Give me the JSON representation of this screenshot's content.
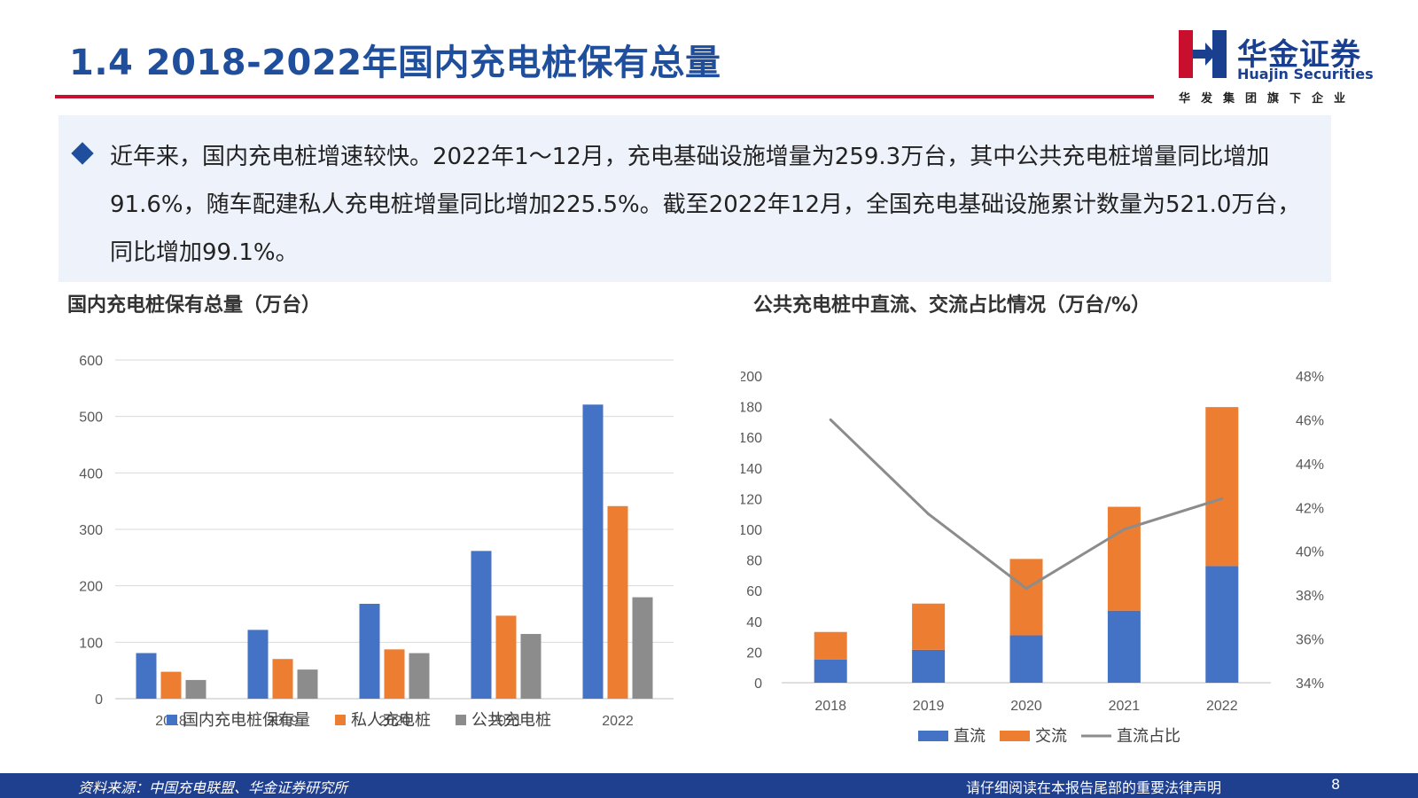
{
  "header": {
    "title": "1.4 2018-2022年国内充电桩保有总量",
    "logo_cn": "华金证券",
    "logo_en": "Huajin Securities",
    "logo_sub": "华发集团旗下企业",
    "colors": {
      "title": "#1f4e9c",
      "rule": "#c8102e",
      "logo_red": "#c8102e",
      "logo_blue": "#1a3f8f"
    }
  },
  "summary": {
    "text": "近年来，国内充电桩增速较快。2022年1～12月，充电基础设施增量为259.3万台，其中公共充电桩增量同比增加91.6%，随车配建私人充电桩增量同比增加225.5%。截至2022年12月，全国充电基础设施累计数量为521.0万台，同比增加99.1%。"
  },
  "footer": {
    "source": "资料来源：中国充电联盟、华金证券研究所",
    "disclaimer": "请仔细阅读在本报告尾部的重要法律声明",
    "page": "8"
  },
  "chart_data": [
    {
      "type": "bar",
      "title": "国内充电桩保有总量（万台）",
      "categories": [
        "2018",
        "2019",
        "2020",
        "2021",
        "2022"
      ],
      "ylim": [
        0,
        600
      ],
      "yticks": [
        "0",
        "100",
        "200",
        "300",
        "400",
        "500",
        "600"
      ],
      "grid": true,
      "legend_position": "bottom",
      "series": [
        {
          "name": "国内充电桩保有量",
          "color": "#4472c4",
          "values": [
            80.8,
            121.9,
            168.1,
            261.7,
            521.0
          ]
        },
        {
          "name": "私人充电桩",
          "color": "#ed7d31",
          "values": [
            47.7,
            70.3,
            87.4,
            147.0,
            341.2
          ]
        },
        {
          "name": "公共充电桩",
          "color": "#8c8c8c",
          "values": [
            33.1,
            51.6,
            80.7,
            114.7,
            179.7
          ]
        }
      ]
    },
    {
      "type": "bar",
      "stacked": true,
      "title": "公共充电桩中直流、交流占比情况（万台/%）",
      "categories": [
        "2018",
        "2019",
        "2020",
        "2021",
        "2022"
      ],
      "ylim": [
        0,
        200
      ],
      "yticks": [
        "0",
        "20",
        "40",
        "60",
        "80",
        "100",
        "120",
        "140",
        "160",
        "180",
        "200"
      ],
      "y2lim": [
        34,
        48
      ],
      "y2ticks": [
        "34%",
        "36%",
        "38%",
        "40%",
        "42%",
        "44%",
        "46%",
        "48%"
      ],
      "grid": false,
      "legend_position": "bottom",
      "series": [
        {
          "name": "直流",
          "color": "#4472c4",
          "values": [
            15.2,
            21.5,
            30.9,
            47.0,
            76.1
          ]
        },
        {
          "name": "交流",
          "color": "#ed7d31",
          "values": [
            17.9,
            30.1,
            49.8,
            67.7,
            103.6
          ]
        }
      ],
      "line_series": {
        "name": "直流占比",
        "color": "#8c8c8c",
        "axis": "right",
        "values": [
          46.0,
          41.7,
          38.3,
          41.0,
          42.4
        ]
      }
    }
  ]
}
